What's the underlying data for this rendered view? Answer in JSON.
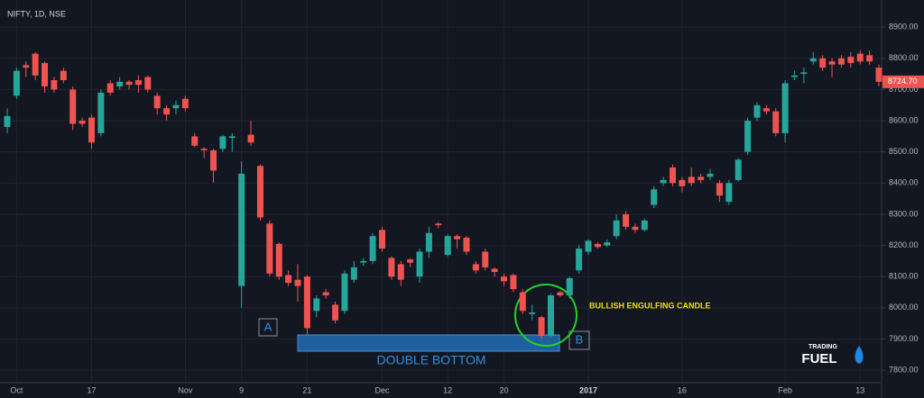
{
  "chart_data": {
    "type": "candlestick",
    "title": "NIFTY, 1D, NSE",
    "categories": [
      null,
      "Oct",
      null,
      null,
      null,
      null,
      null,
      null,
      null,
      "17",
      null,
      null,
      null,
      null,
      null,
      null,
      null,
      null,
      null,
      "Nov",
      null,
      null,
      null,
      null,
      null,
      "9",
      null,
      null,
      null,
      null,
      null,
      null,
      "21",
      null,
      null,
      null,
      null,
      null,
      null,
      null,
      "Dec",
      null,
      null,
      null,
      null,
      null,
      null,
      "12",
      null,
      null,
      null,
      null,
      null,
      "20",
      null,
      null,
      null,
      null,
      null,
      null,
      null,
      null,
      "2017",
      null,
      null,
      null,
      null,
      null,
      null,
      null,
      null,
      null,
      "16",
      null,
      null,
      null,
      null,
      null,
      null,
      null,
      null,
      null,
      null,
      "Feb",
      null,
      null,
      null,
      null,
      null,
      null,
      null,
      "13",
      null,
      null
    ],
    "open": [
      8580,
      8680,
      8778,
      8815,
      8785,
      8730,
      8760,
      8700,
      8600,
      8610,
      8560,
      8720,
      8710,
      8725,
      8730,
      8740,
      8680,
      8640,
      8640,
      8670,
      8550,
      8510,
      8505,
      8510,
      8545,
      8070,
      8555,
      8455,
      8270,
      8205,
      8105,
      8090,
      8100,
      7990,
      8050,
      8010,
      7990,
      8090,
      8145,
      8150,
      8250,
      8160,
      8140,
      8155,
      8100,
      8180,
      8270,
      8170,
      8230,
      8225,
      8140,
      8180,
      8125,
      8100,
      8105,
      8050,
      7980,
      7970,
      7910,
      8050,
      8040,
      8120,
      8180,
      8205,
      8200,
      8230,
      8300,
      8260,
      8250,
      8330,
      8400,
      8450,
      8410,
      8420,
      8420,
      8420,
      8400,
      8340,
      8410,
      8500,
      8610,
      8640,
      8630,
      8560,
      8740,
      8750,
      8790,
      8800,
      8790,
      8800,
      8805,
      8815,
      8810,
      8770
    ],
    "high": [
      8640,
      8770,
      8790,
      8820,
      8790,
      8740,
      8770,
      8710,
      8610,
      8620,
      8700,
      8730,
      8740,
      8730,
      8745,
      8745,
      8690,
      8650,
      8665,
      8680,
      8560,
      8515,
      8510,
      8555,
      8560,
      8470,
      8600,
      8460,
      8280,
      8210,
      8120,
      8140,
      8105,
      8040,
      8060,
      8020,
      8120,
      8150,
      8160,
      8240,
      8260,
      8165,
      8150,
      8160,
      8190,
      8260,
      8275,
      8235,
      8235,
      8230,
      8150,
      8190,
      8130,
      8110,
      8110,
      8060,
      8010,
      7975,
      8045,
      8055,
      8100,
      8200,
      8220,
      8210,
      8220,
      8300,
      8310,
      8270,
      8285,
      8390,
      8420,
      8460,
      8420,
      8450,
      8430,
      8445,
      8410,
      8410,
      8480,
      8610,
      8660,
      8650,
      8640,
      8730,
      8760,
      8770,
      8820,
      8810,
      8800,
      8810,
      8820,
      8825,
      8825,
      8780
    ],
    "low": [
      8560,
      8670,
      8740,
      8730,
      8690,
      8690,
      8720,
      8570,
      8580,
      8510,
      8550,
      8680,
      8700,
      8700,
      8690,
      8690,
      8620,
      8600,
      8620,
      8630,
      8515,
      8480,
      8400,
      8500,
      8500,
      8000,
      8520,
      8280,
      8100,
      8090,
      8070,
      8020,
      7915,
      7970,
      8030,
      7950,
      7980,
      8080,
      8135,
      8140,
      8180,
      8090,
      8070,
      8130,
      8080,
      8160,
      8255,
      8165,
      8190,
      8170,
      8110,
      8120,
      8100,
      8070,
      8050,
      7980,
      7960,
      7900,
      7905,
      8035,
      8030,
      8110,
      8170,
      8190,
      8195,
      8220,
      8250,
      8240,
      8245,
      8320,
      8390,
      8390,
      8370,
      8390,
      8400,
      8410,
      8340,
      8330,
      8405,
      8490,
      8600,
      8620,
      8550,
      8530,
      8730,
      8720,
      8780,
      8760,
      8740,
      8770,
      8770,
      8780,
      8780,
      8710
    ],
    "close": [
      8615,
      8760,
      8770,
      8745,
      8710,
      8700,
      8730,
      8590,
      8590,
      8530,
      8690,
      8690,
      8725,
      8715,
      8715,
      8700,
      8640,
      8620,
      8650,
      8640,
      8520,
      8505,
      8440,
      8550,
      8550,
      8430,
      8530,
      8290,
      8110,
      8100,
      8080,
      8070,
      7935,
      8030,
      8040,
      7960,
      8110,
      8130,
      8150,
      8230,
      8190,
      8100,
      8090,
      8145,
      8180,
      8240,
      8265,
      8230,
      8220,
      8180,
      8120,
      8130,
      8115,
      8085,
      8060,
      7990,
      7985,
      7910,
      8040,
      8040,
      8095,
      8190,
      8215,
      8195,
      8210,
      8280,
      8260,
      8250,
      8280,
      8380,
      8410,
      8400,
      8390,
      8400,
      8410,
      8430,
      8360,
      8400,
      8475,
      8600,
      8650,
      8630,
      8560,
      8720,
      8745,
      8755,
      8800,
      8770,
      8780,
      8780,
      8785,
      8790,
      8790,
      8724.7
    ],
    "last_close_label": "8724.70",
    "up_color": "#26a69a",
    "down_color": "#ef5350",
    "ylim": [
      7760,
      8987
    ],
    "yticks": [
      {
        "value": 7800,
        "label": "7800.00"
      },
      {
        "value": 7900,
        "label": "7900.00"
      },
      {
        "value": 8000,
        "label": "8000.00"
      },
      {
        "value": 8100,
        "label": "8100.00"
      },
      {
        "value": 8200,
        "label": "8200.00"
      },
      {
        "value": 8300,
        "label": "8300.00"
      },
      {
        "value": 8400,
        "label": "8400.00"
      },
      {
        "value": 8500,
        "label": "8500.00"
      },
      {
        "value": 8600,
        "label": "8600.00"
      },
      {
        "value": 8700,
        "label": "8700.00"
      },
      {
        "value": 8800,
        "label": "8800.00"
      },
      {
        "value": 8900,
        "label": "8900.00"
      }
    ],
    "grid": true,
    "annotations": {
      "point_a": "A",
      "point_b": "B",
      "pattern": "DOUBLE BOTTOM",
      "candle": "BULLISH ENGULFING CANDLE"
    },
    "logo": {
      "top": "TRADING",
      "bottom": "FUEL"
    }
  }
}
